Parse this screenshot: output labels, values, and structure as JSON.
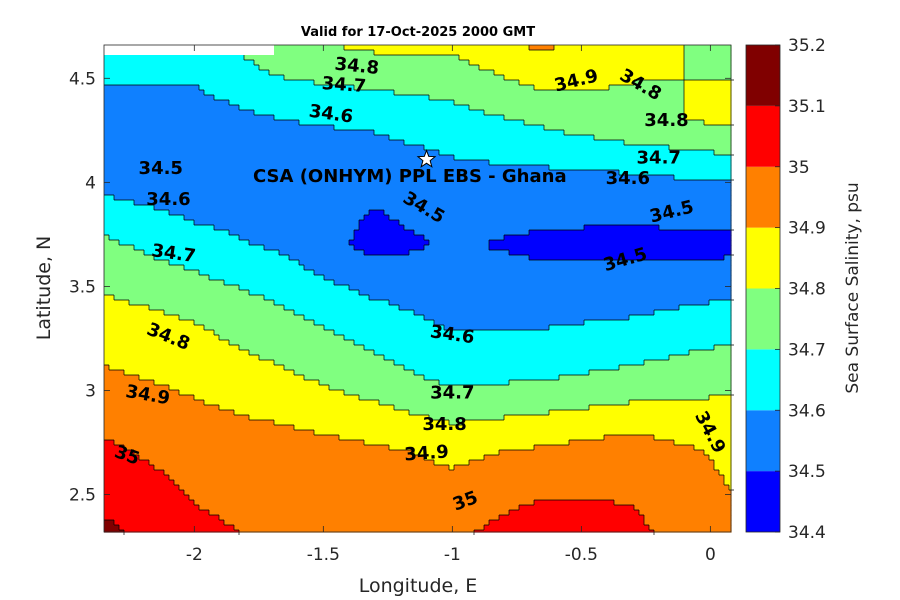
{
  "chart_data": {
    "type": "heatmap",
    "subtype": "filled-contour",
    "title": "Valid for 17-Oct-2025 2000 GMT",
    "xlabel": "Longitude, E",
    "ylabel": "Latitude, N",
    "xlim": [
      -2.35,
      0.08
    ],
    "ylim": [
      2.32,
      4.66
    ],
    "xticks": [
      {
        "value": -2,
        "label": "-2"
      },
      {
        "value": -1.5,
        "label": "-1.5"
      },
      {
        "value": -1,
        "label": "-1"
      },
      {
        "value": -0.5,
        "label": "-0.5"
      },
      {
        "value": 0,
        "label": "0"
      }
    ],
    "yticks": [
      {
        "value": 2.5,
        "label": "2.5"
      },
      {
        "value": 3,
        "label": "3"
      },
      {
        "value": 3.5,
        "label": "3.5"
      },
      {
        "value": 4,
        "label": "4"
      },
      {
        "value": 4.5,
        "label": "4.5"
      }
    ],
    "colorbar": {
      "label": "Sea Surface Salinity, psu",
      "range": [
        34.4,
        35.2
      ],
      "levels": [
        {
          "low": 34.4,
          "high": 34.5,
          "color": "#0000ff"
        },
        {
          "low": 34.5,
          "high": 34.6,
          "color": "#0f80ff"
        },
        {
          "low": 34.6,
          "high": 34.7,
          "color": "#00ffff"
        },
        {
          "low": 34.7,
          "high": 34.8,
          "color": "#80ff80"
        },
        {
          "low": 34.8,
          "high": 34.9,
          "color": "#ffff00"
        },
        {
          "low": 34.9,
          "high": 35.0,
          "color": "#ff8000"
        },
        {
          "low": 35.0,
          "high": 35.1,
          "color": "#ff0000"
        },
        {
          "low": 35.1,
          "high": 35.2,
          "color": "#800000"
        }
      ],
      "ticks": [
        {
          "value": 34.4,
          "label": "34.4"
        },
        {
          "value": 34.5,
          "label": "34.5"
        },
        {
          "value": 34.6,
          "label": "34.6"
        },
        {
          "value": 34.7,
          "label": "34.7"
        },
        {
          "value": 34.8,
          "label": "34.8"
        },
        {
          "value": 34.9,
          "label": "34.9"
        },
        {
          "value": 35.0,
          "label": "35"
        },
        {
          "value": 35.1,
          "label": "35.1"
        },
        {
          "value": 35.2,
          "label": "35.2"
        }
      ]
    },
    "grid_lon": [
      -2.35,
      -2.0,
      -1.65,
      -1.3,
      -1.0,
      -0.65,
      -0.3,
      0.08
    ],
    "grid_lat": [
      2.32,
      2.7,
      3.05,
      3.4,
      3.7,
      4.0,
      4.3,
      4.66
    ],
    "grid_values": [
      [
        35.12,
        35.02,
        34.98,
        34.95,
        34.98,
        35.06,
        35.02,
        34.92
      ],
      [
        35.02,
        34.96,
        34.95,
        34.92,
        34.88,
        34.92,
        34.96,
        34.88
      ],
      [
        34.92,
        34.88,
        34.82,
        34.75,
        34.68,
        34.7,
        34.73,
        34.78
      ],
      [
        34.82,
        34.78,
        34.7,
        34.62,
        34.56,
        34.56,
        34.58,
        34.62
      ],
      [
        34.72,
        34.64,
        34.58,
        34.47,
        34.51,
        34.48,
        34.47,
        34.47
      ],
      [
        34.57,
        34.53,
        34.52,
        34.52,
        34.56,
        34.56,
        34.57,
        34.6
      ],
      [
        34.52,
        34.55,
        34.6,
        34.62,
        34.66,
        34.72,
        34.78,
        34.82
      ],
      [
        34.68,
        34.66,
        34.78,
        34.82,
        34.82,
        34.92,
        34.82,
        34.78
      ]
    ],
    "missing_region": {
      "lon": [
        -2.35,
        -1.7
      ],
      "lat": [
        4.6,
        4.66
      ]
    },
    "contour_labels": [
      {
        "text": "34.8",
        "lon": -1.37,
        "lat": 4.56,
        "angle": 6
      },
      {
        "text": "34.7",
        "lon": -1.42,
        "lat": 4.47,
        "angle": 4
      },
      {
        "text": "34.6",
        "lon": -1.47,
        "lat": 4.33,
        "angle": 8
      },
      {
        "text": "34.5",
        "lon": -2.13,
        "lat": 4.07,
        "angle": 0
      },
      {
        "text": "34.6",
        "lon": -2.1,
        "lat": 3.92,
        "angle": 0
      },
      {
        "text": "34.7",
        "lon": -2.08,
        "lat": 3.66,
        "angle": 8
      },
      {
        "text": "34.8",
        "lon": -2.1,
        "lat": 3.26,
        "angle": 22
      },
      {
        "text": "34.9",
        "lon": -2.18,
        "lat": 2.98,
        "angle": 10
      },
      {
        "text": "35",
        "lon": -2.26,
        "lat": 2.69,
        "angle": 20
      },
      {
        "text": "34.5",
        "lon": -1.11,
        "lat": 3.88,
        "angle": 30
      },
      {
        "text": "34.6",
        "lon": -1.0,
        "lat": 3.27,
        "angle": 8
      },
      {
        "text": "34.7",
        "lon": -1.0,
        "lat": 2.99,
        "angle": 0
      },
      {
        "text": "34.8",
        "lon": -1.03,
        "lat": 2.84,
        "angle": 0
      },
      {
        "text": "34.9",
        "lon": -1.1,
        "lat": 2.7,
        "angle": -4
      },
      {
        "text": "35",
        "lon": -0.95,
        "lat": 2.47,
        "angle": -20
      },
      {
        "text": "34.9",
        "lon": -0.52,
        "lat": 4.49,
        "angle": -14
      },
      {
        "text": "34.8",
        "lon": -0.27,
        "lat": 4.47,
        "angle": 30
      },
      {
        "text": "34.8",
        "lon": -0.17,
        "lat": 4.3,
        "angle": 0
      },
      {
        "text": "34.7",
        "lon": -0.2,
        "lat": 4.12,
        "angle": 0
      },
      {
        "text": "34.6",
        "lon": -0.32,
        "lat": 4.02,
        "angle": 0
      },
      {
        "text": "34.5",
        "lon": -0.15,
        "lat": 3.86,
        "angle": -14
      },
      {
        "text": "34.5",
        "lon": -0.33,
        "lat": 3.63,
        "angle": -16
      },
      {
        "text": "34.9",
        "lon": 0.0,
        "lat": 2.8,
        "angle": 62
      }
    ],
    "site_marker": {
      "label": "CSA (ONHYM) PPL EBS  - Ghana",
      "lon": -1.1,
      "lat": 4.11
    }
  }
}
